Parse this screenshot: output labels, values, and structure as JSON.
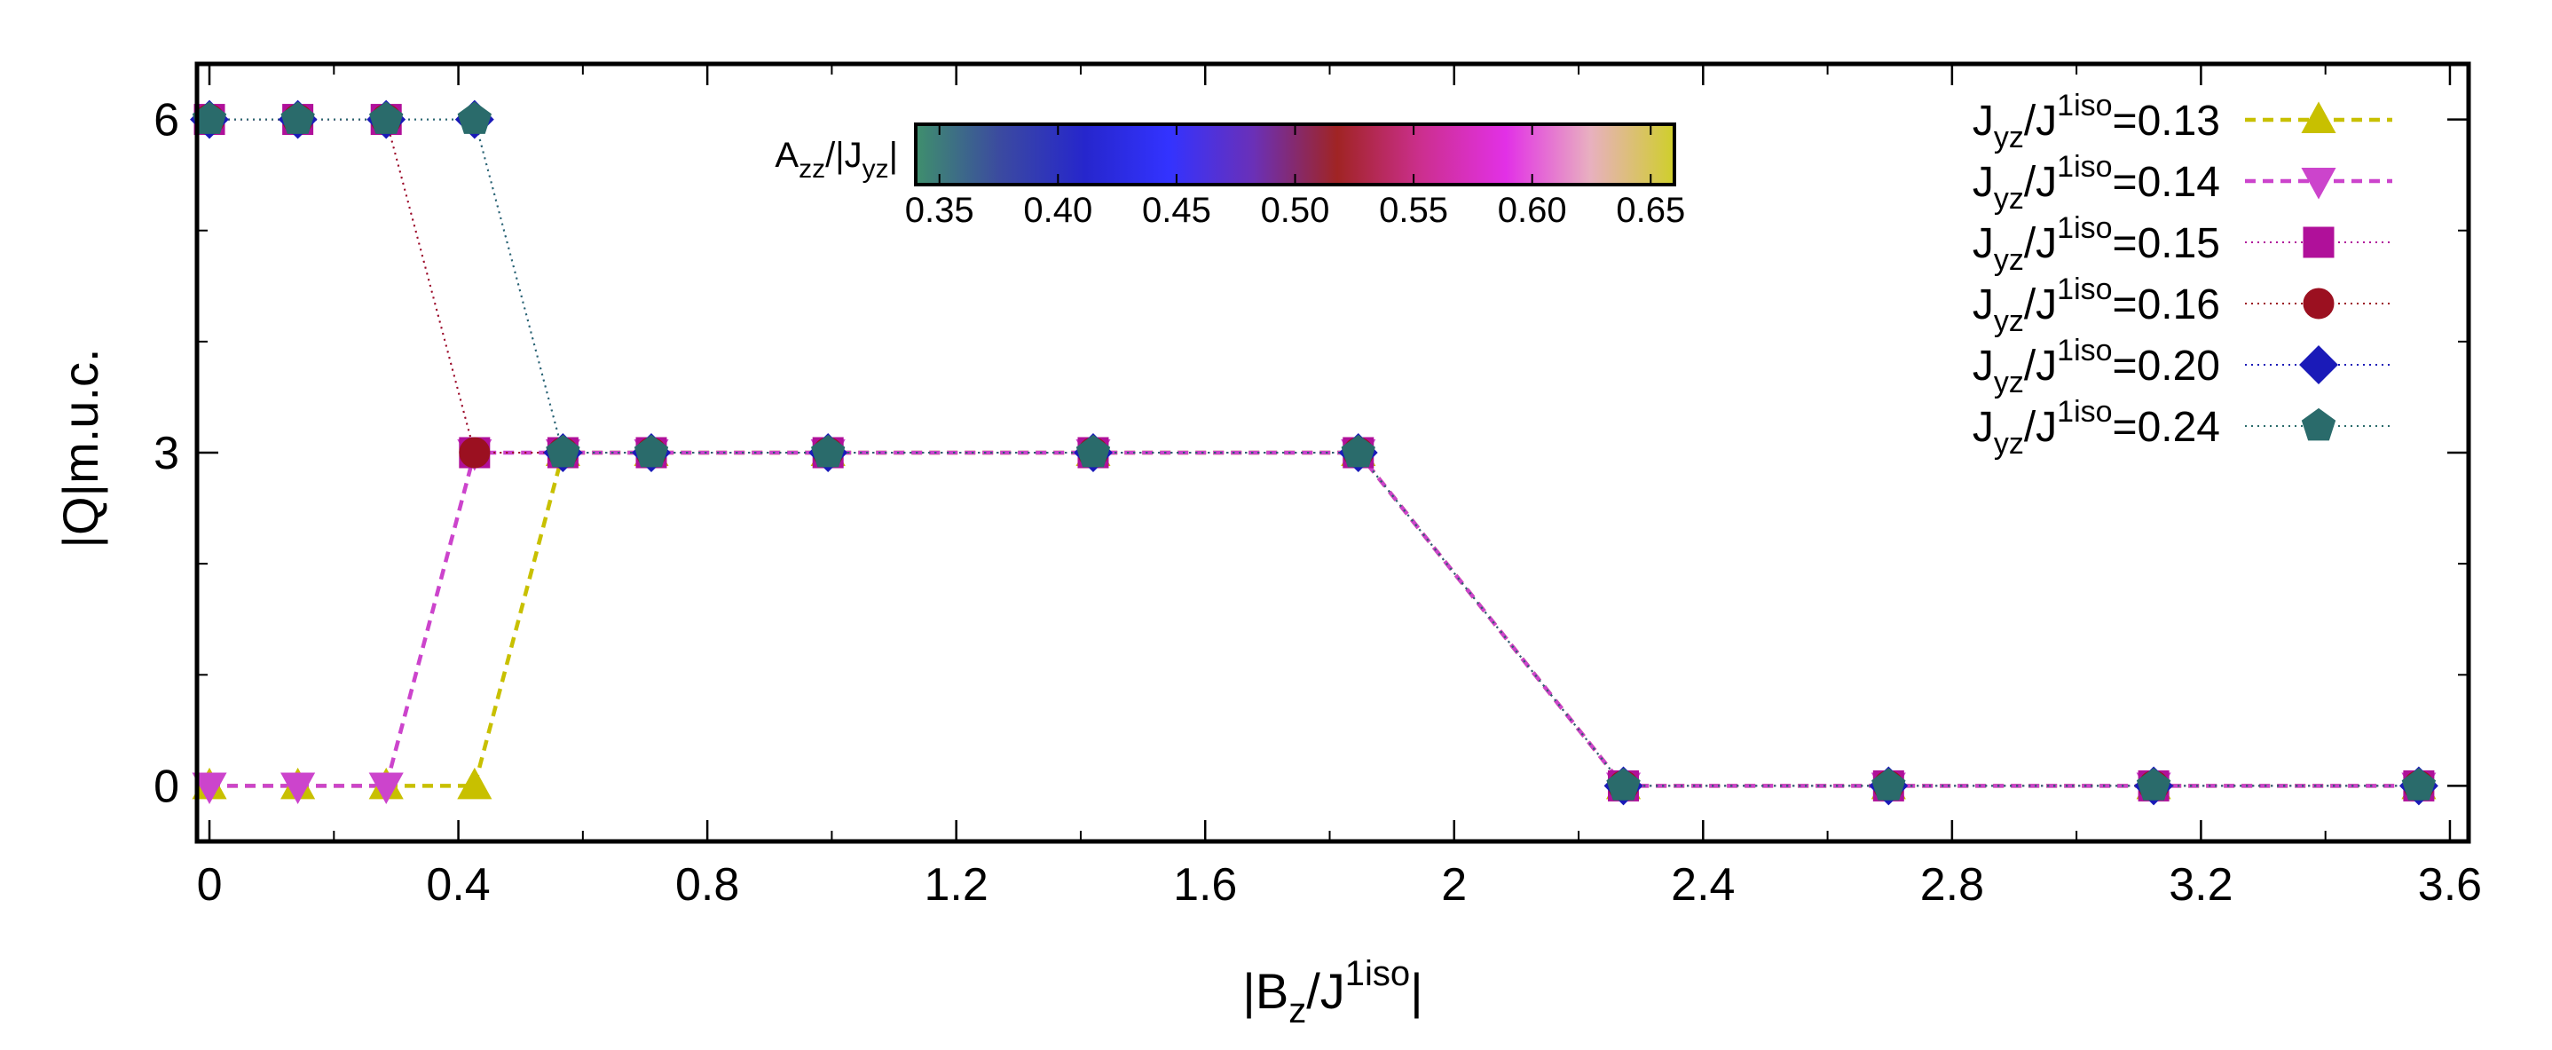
{
  "chart_data": {
    "type": "line",
    "xlabel": {
      "main": "|B",
      "sub": "z",
      "mid": "/J",
      "sup": "1iso",
      "end": "|"
    },
    "ylabel": "|Q|m.u.c.",
    "xlim": [
      -0.02,
      3.63
    ],
    "ylim": [
      -0.5,
      6.5
    ],
    "xticks": [
      0,
      0.4,
      0.8,
      1.2,
      1.6,
      2,
      2.4,
      2.8,
      3.2,
      3.6
    ],
    "xtick_labels": [
      "0",
      "0.4",
      "0.8",
      "1.2",
      "1.6",
      "2",
      "2.4",
      "2.8",
      "3.2",
      "3.6"
    ],
    "yticks": [
      0,
      3,
      6
    ],
    "ytick_labels": [
      "0",
      "3",
      "6"
    ],
    "legend_position": "top-right",
    "colorbar": {
      "label": {
        "a": "A",
        "asub": "zz",
        "mid": "/|J",
        "jsub": "yz",
        "end": "|"
      },
      "min": 0.34,
      "max": 0.66,
      "ticks": [
        0.35,
        0.4,
        0.45,
        0.5,
        0.55,
        0.6,
        0.65
      ],
      "tick_labels": [
        "0.35",
        "0.40",
        "0.45",
        "0.50",
        "0.55",
        "0.60",
        "0.65"
      ],
      "colors": [
        "#3f8f6d",
        "#3b4aa0",
        "#2626cc",
        "#3333ff",
        "#6a30b8",
        "#a02424",
        "#cc2f8f",
        "#e230e6",
        "#e8b0c0",
        "#cfcf2a"
      ]
    },
    "series": [
      {
        "name_main": "J",
        "name_sub": "yz",
        "name_mid": "/J",
        "name_sup": "1iso",
        "name_value": "=0.13",
        "marker": "triangle-up",
        "color": "#c8c000",
        "dash": "12,8",
        "width": 4.5,
        "x": [
          0,
          0.142,
          0.284,
          0.426,
          0.568,
          0.71,
          0.994,
          1.42,
          1.846,
          2.272,
          2.698,
          3.124,
          3.55
        ],
        "y": [
          0,
          0,
          0,
          0,
          3,
          3,
          3,
          3,
          3,
          0,
          0,
          0,
          0
        ]
      },
      {
        "name_main": "J",
        "name_sub": "yz",
        "name_mid": "/J",
        "name_sup": "1iso",
        "name_value": "=0.14",
        "marker": "triangle-down",
        "color": "#cc44cc",
        "dash": "12,8",
        "width": 4.5,
        "x": [
          0,
          0.142,
          0.284,
          0.426,
          0.568,
          0.71,
          0.994,
          1.42,
          1.846,
          2.272,
          2.698,
          3.124,
          3.55
        ],
        "y": [
          0,
          0,
          0,
          3,
          3,
          3,
          3,
          3,
          3,
          0,
          0,
          0,
          0
        ]
      },
      {
        "name_main": "J",
        "name_sub": "yz",
        "name_mid": "/J",
        "name_sup": "1iso",
        "name_value": "=0.15",
        "marker": "square",
        "color": "#b0109a",
        "dash": "2,5",
        "width": 2,
        "x": [
          0,
          0.142,
          0.284,
          0.426,
          0.568,
          0.71,
          0.994,
          1.42,
          1.846,
          2.272,
          2.698,
          3.124,
          3.55
        ],
        "y": [
          6,
          6,
          6,
          3,
          3,
          3,
          3,
          3,
          3,
          0,
          0,
          0,
          0
        ]
      },
      {
        "name_main": "J",
        "name_sub": "yz",
        "name_mid": "/J",
        "name_sup": "1iso",
        "name_value": "=0.16",
        "marker": "circle",
        "color": "#9b1020",
        "dash": "2,5",
        "width": 2,
        "x": [
          0,
          0.142,
          0.284,
          0.426,
          0.568,
          0.71,
          0.994,
          1.42,
          1.846,
          2.272,
          2.698,
          3.124,
          3.55
        ],
        "y": [
          6,
          6,
          6,
          3,
          3,
          3,
          3,
          3,
          3,
          0,
          0,
          0,
          0
        ]
      },
      {
        "name_main": "J",
        "name_sub": "yz",
        "name_mid": "/J",
        "name_sup": "1iso",
        "name_value": "=0.20",
        "marker": "diamond",
        "color": "#1a1ab8",
        "dash": "2,5",
        "width": 2,
        "x": [
          0,
          0.142,
          0.284,
          0.426,
          0.568,
          0.71,
          0.994,
          1.42,
          1.846,
          2.272,
          2.698,
          3.124,
          3.55
        ],
        "y": [
          6,
          6,
          6,
          6,
          3,
          3,
          3,
          3,
          3,
          0,
          0,
          0,
          0
        ]
      },
      {
        "name_main": "J",
        "name_sub": "yz",
        "name_mid": "/J",
        "name_sup": "1iso",
        "name_value": "=0.24",
        "marker": "pentagon",
        "color": "#2a6b6b",
        "dash": "2,5",
        "width": 2,
        "x": [
          0,
          0.142,
          0.284,
          0.426,
          0.568,
          0.71,
          0.994,
          1.42,
          1.846,
          2.272,
          2.698,
          3.124,
          3.55
        ],
        "y": [
          6,
          6,
          6,
          6,
          3,
          3,
          3,
          3,
          3,
          0,
          0,
          0,
          0
        ]
      }
    ]
  }
}
